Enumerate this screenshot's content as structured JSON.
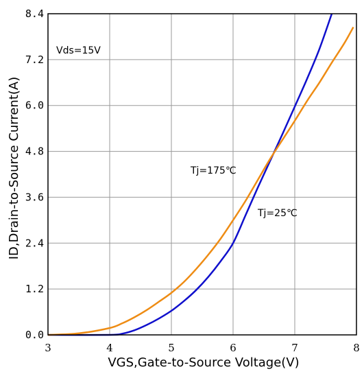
{
  "chart_data": {
    "type": "line",
    "xlabel": "VGS,Gate-to-Source Voltage(V)",
    "ylabel": "ID,Drain-to-Source Current(A)",
    "xlim": [
      3,
      8
    ],
    "ylim": [
      0,
      8.4
    ],
    "x_ticks": [
      "3",
      "4",
      "5",
      "6",
      "7",
      "8"
    ],
    "y_ticks": [
      "0.0",
      "1.2",
      "2.4",
      "3.6",
      "4.8",
      "6.0",
      "7.2",
      "8.4"
    ],
    "x_tick_values": [
      3,
      4,
      5,
      6,
      7,
      8
    ],
    "y_tick_values": [
      0,
      1.2,
      2.4,
      3.6,
      4.8,
      6.0,
      7.2,
      8.4
    ],
    "grid": true,
    "annotations": {
      "condition": "Vds=15V",
      "hot_label": "Tj=175℃",
      "cold_label": "Tj=25℃"
    },
    "series": [
      {
        "name": "Tj=25℃",
        "color": "#1010cc",
        "x": [
          3.0,
          4.0,
          4.2,
          4.4,
          4.6,
          4.8,
          5.0,
          5.2,
          5.4,
          5.6,
          5.8,
          6.0,
          6.2,
          6.4,
          6.6,
          6.8,
          7.0,
          7.2,
          7.4,
          7.6
        ],
        "y": [
          0.0,
          0.0,
          0.03,
          0.12,
          0.26,
          0.43,
          0.63,
          0.88,
          1.17,
          1.52,
          1.93,
          2.4,
          3.12,
          3.85,
          4.55,
          5.25,
          5.97,
          6.7,
          7.48,
          8.4
        ]
      },
      {
        "name": "Tj=175℃",
        "color": "#ee8c14",
        "x": [
          3.0,
          3.5,
          4.0,
          4.2,
          4.4,
          4.6,
          4.8,
          5.0,
          5.2,
          5.4,
          5.6,
          5.8,
          6.0,
          6.2,
          6.4,
          6.6,
          6.8,
          7.0,
          7.2,
          7.4,
          7.6,
          7.8,
          7.95
        ],
        "y": [
          0.0,
          0.04,
          0.18,
          0.3,
          0.46,
          0.65,
          0.87,
          1.1,
          1.38,
          1.72,
          2.1,
          2.52,
          3.0,
          3.5,
          4.05,
          4.6,
          5.1,
          5.6,
          6.12,
          6.6,
          7.12,
          7.62,
          8.05
        ]
      }
    ]
  }
}
